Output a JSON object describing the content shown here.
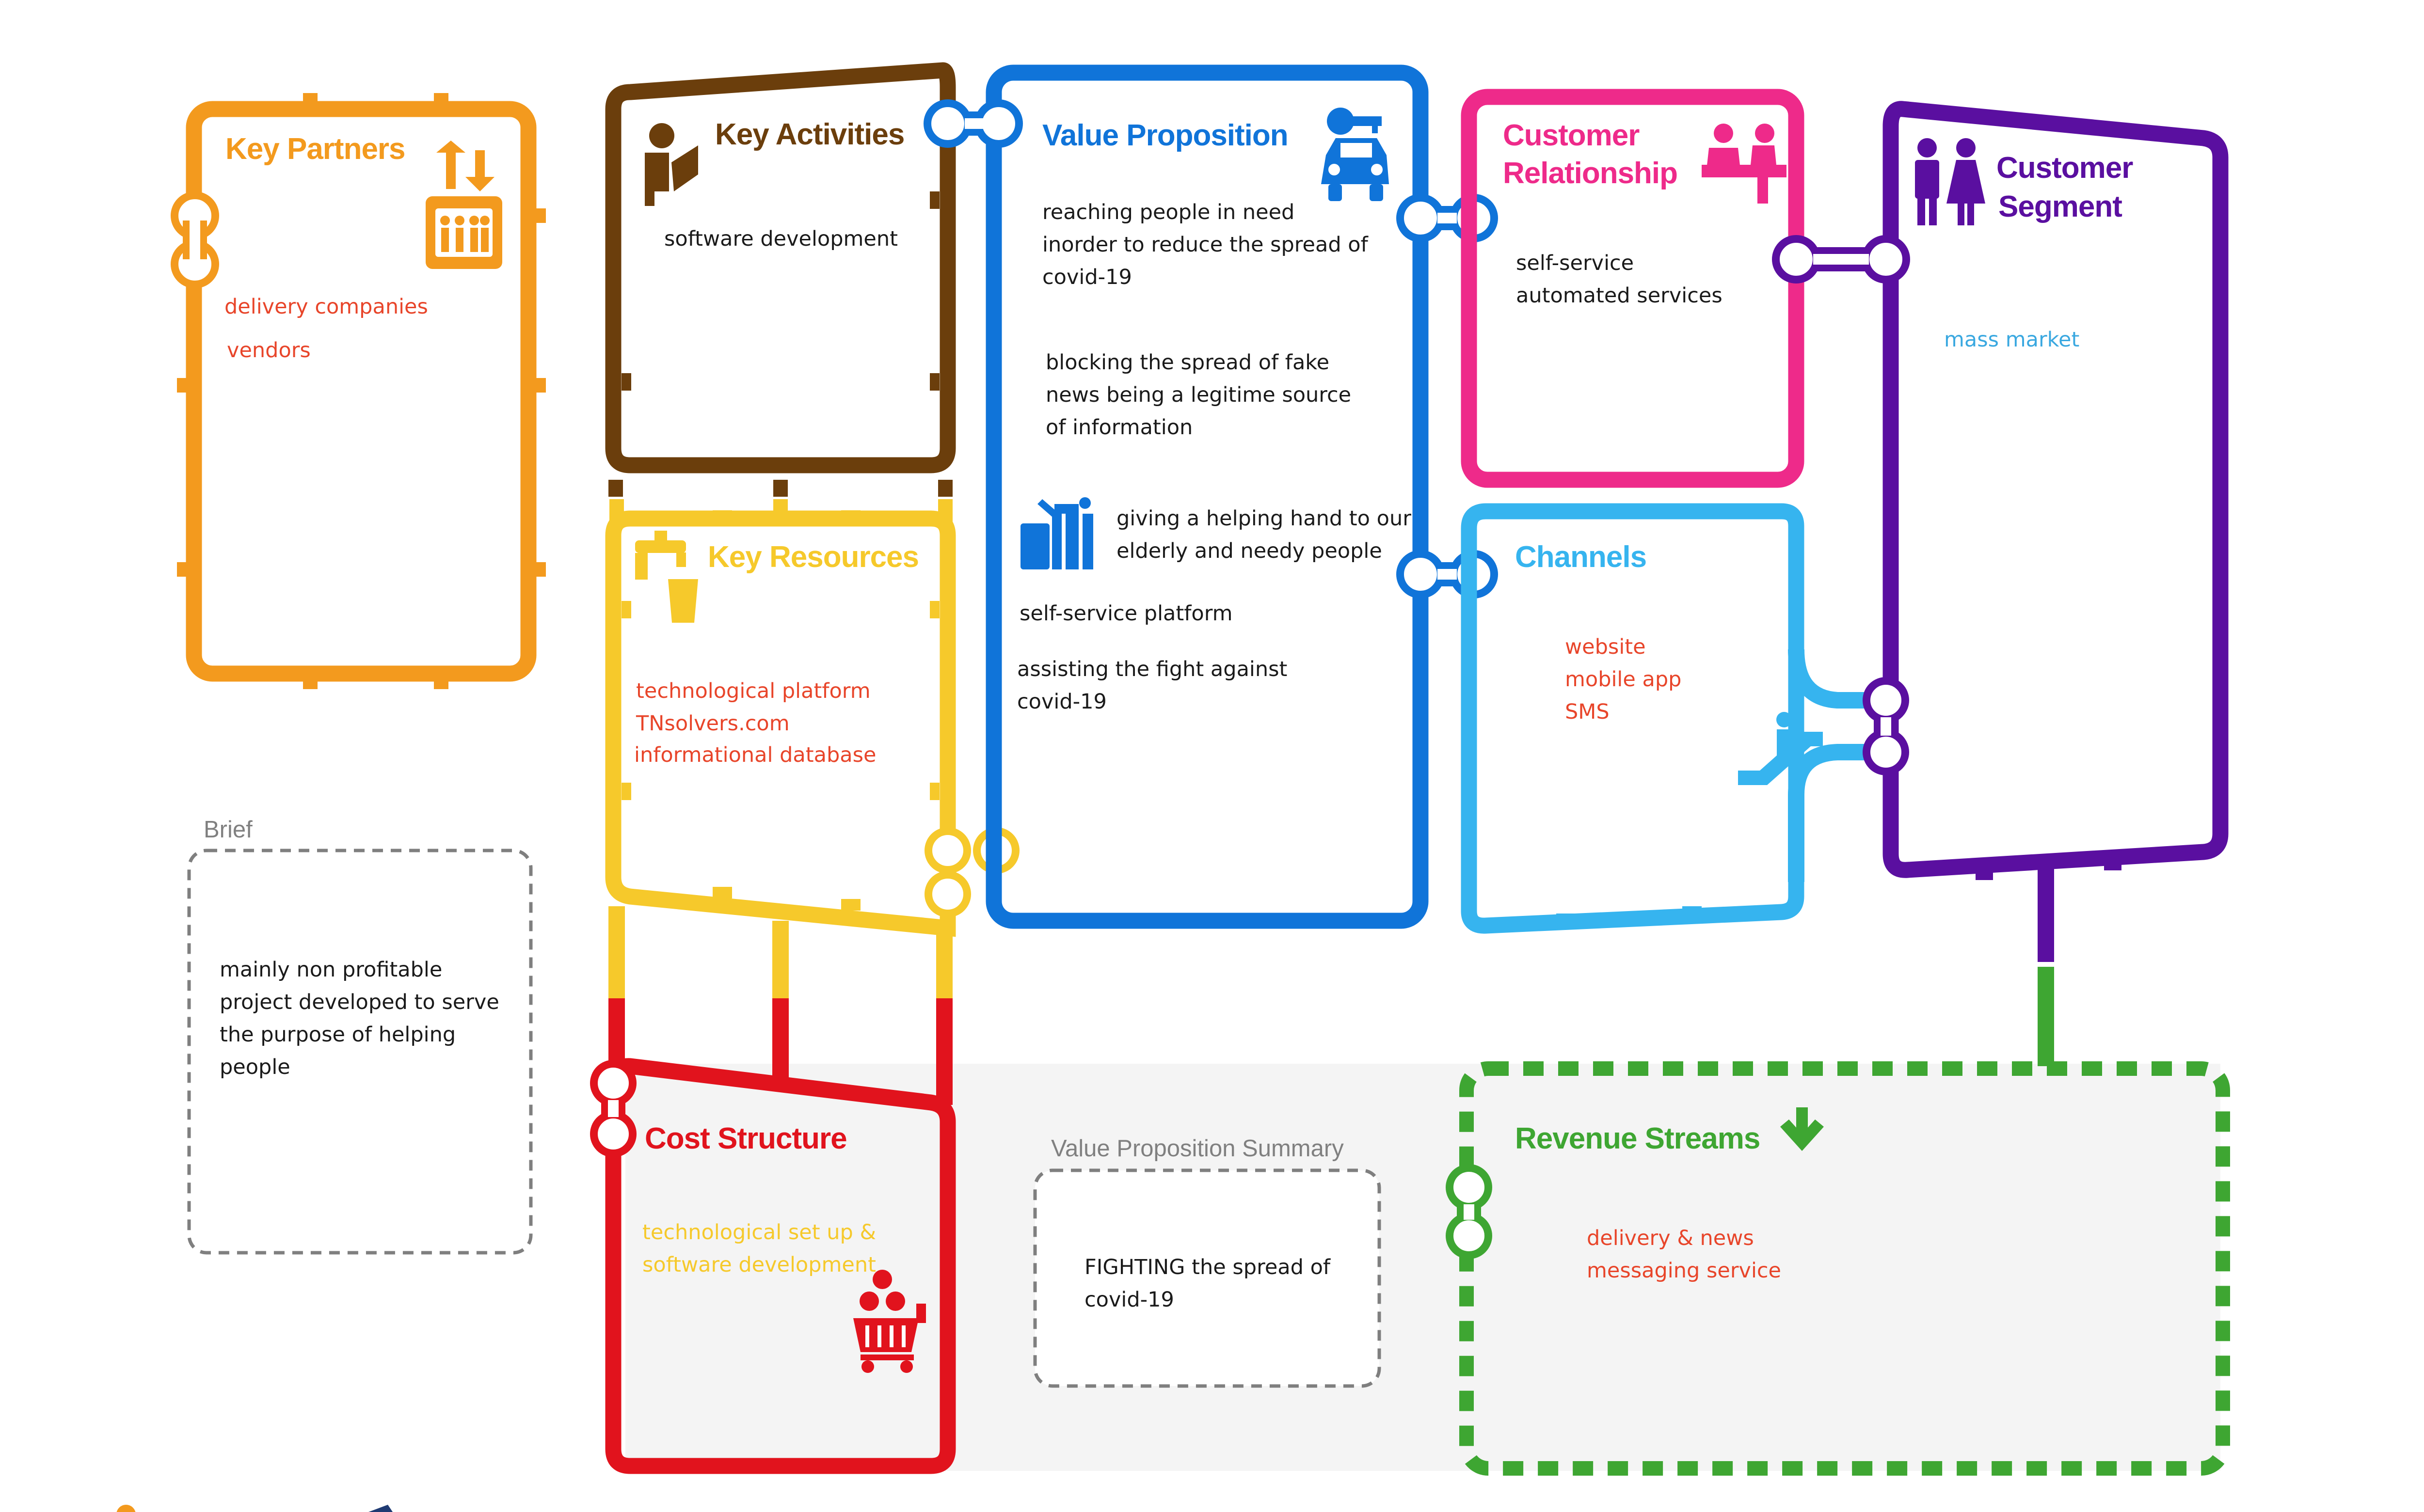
{
  "colors": {
    "partners": "#f39a1e",
    "activities": "#6b3e0c",
    "resources": "#f6c92b",
    "value": "#1074d9",
    "relationship": "#ee2a8a",
    "channels": "#36b4ef",
    "segment": "#5a0fa0",
    "cost": "#e1131d",
    "revenue": "#3ea632",
    "red_text": "#e8452a",
    "blue_text": "#3aa8e0",
    "dark_text": "#1a1a1a",
    "grey": "#808080"
  },
  "key_partners": {
    "title": "Key Partners",
    "icon": "elevator-icon",
    "items": [
      "delivery companies",
      "vendors"
    ]
  },
  "key_activities": {
    "title": "Key Activities",
    "icon": "worker-reading-icon",
    "items": [
      "software development"
    ]
  },
  "key_resources": {
    "title": "Key Resources",
    "icon": "water-tap-icon",
    "items": [
      "technological platform",
      "TNsolvers.com",
      "informational database"
    ]
  },
  "value_proposition": {
    "title": "Value Proposition",
    "icon": "car-key-icon",
    "icon2": "gift-bag-icon",
    "items": [
      [
        "reaching people in need",
        "inorder to reduce the spread of",
        "covid-19"
      ],
      [
        "blocking the spread of fake",
        "news being a legitime source",
        "of information"
      ],
      [
        "giving a helping hand to our",
        "elderly and needy people"
      ],
      [
        "self-service platform"
      ],
      [
        "assisting the fight against",
        "covid-19"
      ]
    ]
  },
  "customer_relationship": {
    "title_lines": [
      "Customer",
      "Relationship"
    ],
    "icon": "service-desk-icon",
    "items": [
      "self-service",
      "automated services"
    ]
  },
  "channels": {
    "title": "Channels",
    "icon": "escalator-icon",
    "items": [
      "website",
      "mobile app",
      "SMS"
    ]
  },
  "customer_segment": {
    "title_lines": [
      "Customer",
      "Segment"
    ],
    "icon": "people-icon",
    "items": [
      "mass market"
    ]
  },
  "cost_structure": {
    "title": "Cost Structure",
    "icon": "shopping-cart-icon",
    "items": [
      "technological set up &",
      "software development"
    ]
  },
  "revenue_streams": {
    "title": "Revenue Streams",
    "icon": "arrow-down-icon",
    "items": [
      "delivery & news",
      "messaging service"
    ]
  },
  "brief": {
    "title": "Brief",
    "lines": [
      "mainly non profitable",
      "project developed to serve",
      "the purpose of helping",
      "people"
    ]
  },
  "value_summary": {
    "title": "Value Proposition Summary",
    "lines": [
      "FIGHTING the spread of",
      "covid-19"
    ]
  }
}
